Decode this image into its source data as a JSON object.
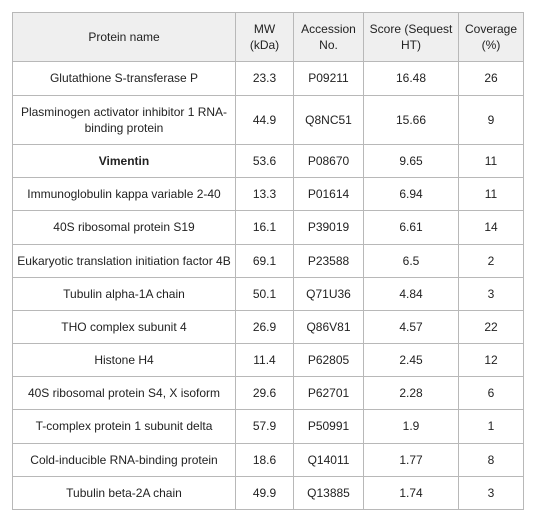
{
  "table": {
    "columns": [
      {
        "label": "Protein name"
      },
      {
        "label": "MW (kDa)"
      },
      {
        "label": "Accession No."
      },
      {
        "label": "Score (Sequest HT)"
      },
      {
        "label": "Coverage (%)"
      }
    ],
    "rows": [
      {
        "name": "Glutathione S-transferase P",
        "mw": "23.3",
        "acc": "P09211",
        "score": "16.48",
        "cov": "26",
        "bold": false
      },
      {
        "name": "Plasminogen activator inhibitor 1 RNA-binding protein",
        "mw": "44.9",
        "acc": "Q8NC51",
        "score": "15.66",
        "cov": "9",
        "bold": false
      },
      {
        "name": "Vimentin",
        "mw": "53.6",
        "acc": "P08670",
        "score": "9.65",
        "cov": "11",
        "bold": true
      },
      {
        "name": "Immunoglobulin kappa variable 2-40",
        "mw": "13.3",
        "acc": "P01614",
        "score": "6.94",
        "cov": "11",
        "bold": false
      },
      {
        "name": "40S ribosomal protein S19",
        "mw": "16.1",
        "acc": "P39019",
        "score": "6.61",
        "cov": "14",
        "bold": false
      },
      {
        "name": "Eukaryotic translation initiation factor 4B",
        "mw": "69.1",
        "acc": "P23588",
        "score": "6.5",
        "cov": "2",
        "bold": false
      },
      {
        "name": "Tubulin alpha-1A chain",
        "mw": "50.1",
        "acc": "Q71U36",
        "score": "4.84",
        "cov": "3",
        "bold": false
      },
      {
        "name": "THO complex subunit 4",
        "mw": "26.9",
        "acc": "Q86V81",
        "score": "4.57",
        "cov": "22",
        "bold": false
      },
      {
        "name": "Histone H4",
        "mw": "11.4",
        "acc": "P62805",
        "score": "2.45",
        "cov": "12",
        "bold": false
      },
      {
        "name": "40S ribosomal protein S4, X isoform",
        "mw": "29.6",
        "acc": "P62701",
        "score": "2.28",
        "cov": "6",
        "bold": false
      },
      {
        "name": "T-complex protein 1 subunit delta",
        "mw": "57.9",
        "acc": "P50991",
        "score": "1.9",
        "cov": "1",
        "bold": false
      },
      {
        "name": "Cold-inducible RNA-binding protein",
        "mw": "18.6",
        "acc": "Q14011",
        "score": "1.77",
        "cov": "8",
        "bold": false
      },
      {
        "name": "Tubulin beta-2A chain",
        "mw": "49.9",
        "acc": "Q13885",
        "score": "1.74",
        "cov": "3",
        "bold": false
      }
    ]
  }
}
